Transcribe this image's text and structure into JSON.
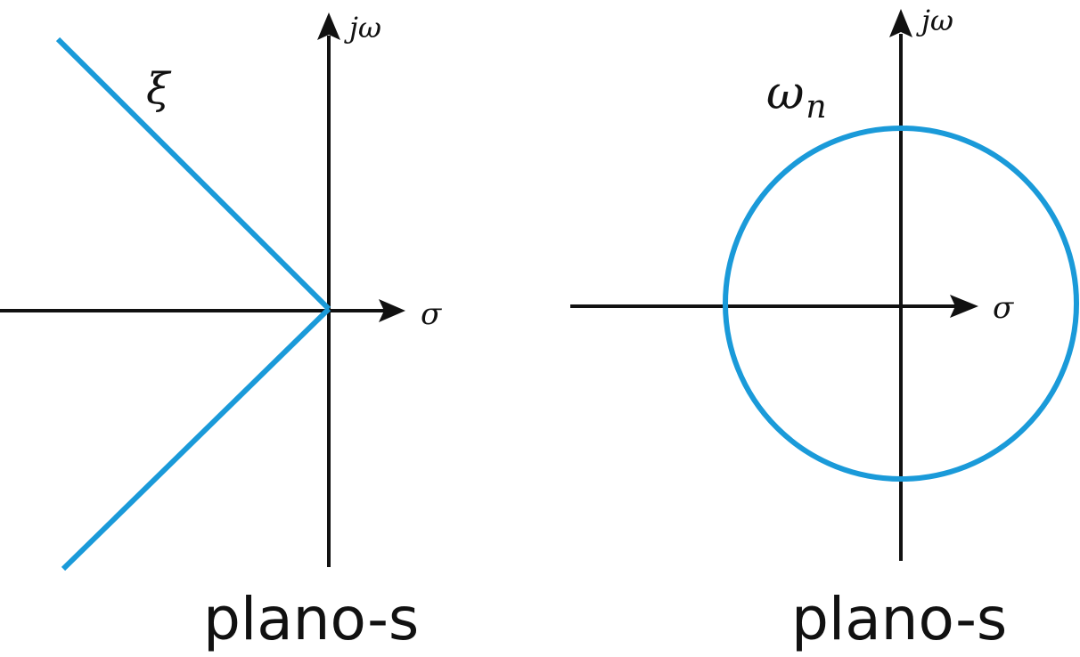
{
  "colors": {
    "axis": "#111111",
    "curve": "#1a9ad9",
    "background": "#ffffff"
  },
  "left_plane": {
    "imag_axis_label": "jω",
    "real_axis_label": "σ",
    "curve_label": "ξ",
    "caption": "plano-s"
  },
  "right_plane": {
    "imag_axis_label": "jω",
    "real_axis_label": "σ",
    "curve_label_main": "ω",
    "curve_label_sub": "n",
    "caption": "plano-s"
  }
}
